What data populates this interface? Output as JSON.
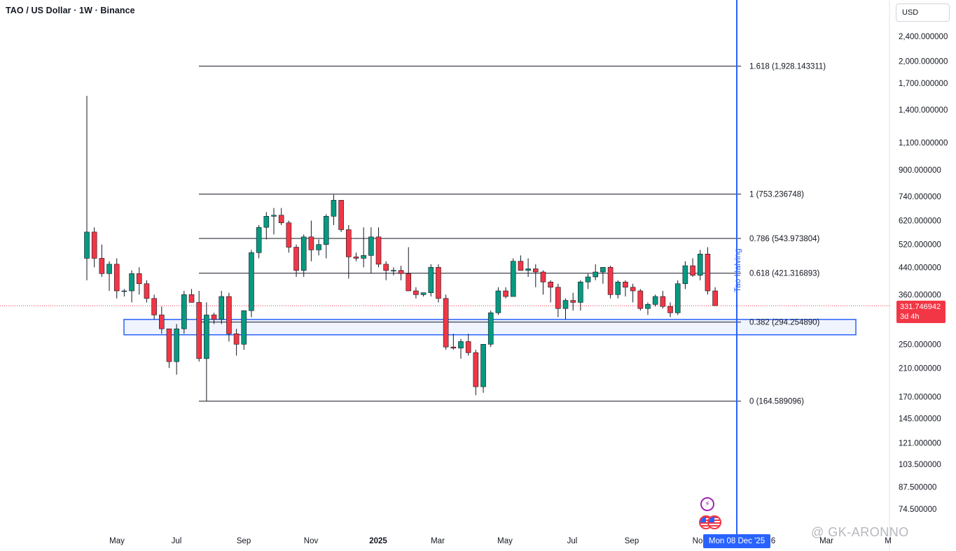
{
  "title": "TAO / US Dollar · 1W · Binance",
  "currency": "USD",
  "current_price": {
    "value": "331.746942",
    "countdown": "3d 4h",
    "color": "#f23645"
  },
  "crosshair_date": "Mon 08 Dec '25",
  "watermark": "@ GK-ARONNO",
  "halving_label": "Tao Halving",
  "icons": {
    "events": "lightning-bolt-icon",
    "economic": "us-flag-icon"
  },
  "colors": {
    "up": "#089981",
    "down": "#f23645",
    "fib_line": "#131722",
    "halving": "#2962ff",
    "zone": "#2962ff"
  },
  "price_axis": [
    "2,400.000000",
    "2,000.000000",
    "1,700.000000",
    "1,400.000000",
    "1,100.000000",
    "900.000000",
    "740.000000",
    "620.000000",
    "520.000000",
    "440.000000",
    "360.000000",
    "250.000000",
    "210.000000",
    "170.000000",
    "145.000000",
    "121.000000",
    "103.500000",
    "87.500000",
    "74.500000"
  ],
  "time_axis": [
    "May",
    "Jul",
    "Sep",
    "Nov",
    "2025",
    "Mar",
    "May",
    "Jul",
    "Sep",
    "No",
    "6",
    "Mar",
    "M"
  ],
  "chart_data": {
    "type": "candlestick",
    "title": "TAO / US Dollar · 1W · Binance",
    "yscale": "log",
    "ylim": [
      65,
      2900
    ],
    "fib_levels": [
      {
        "label": "1.618 (1,928.143311)",
        "value": 1928.143311
      },
      {
        "label": "1 (753.236748)",
        "value": 753.236748
      },
      {
        "label": "0.786 (543.973804)",
        "value": 543.973804
      },
      {
        "label": "0.618 (421.316893)",
        "value": 421.316893
      },
      {
        "label": "0.382 (294.254890)",
        "value": 294.25489
      },
      {
        "label": "0 (164.589096)",
        "value": 164.589096
      }
    ],
    "support_zone": [
      268,
      300
    ],
    "current_price": 331.746942,
    "candles": [
      [
        470,
        1550,
        400,
        570
      ],
      [
        570,
        590,
        440,
        470
      ],
      [
        470,
        520,
        410,
        420
      ],
      [
        420,
        460,
        370,
        450
      ],
      [
        450,
        470,
        350,
        370
      ],
      [
        370,
        375,
        355,
        370
      ],
      [
        370,
        430,
        340,
        420
      ],
      [
        420,
        440,
        360,
        390
      ],
      [
        390,
        400,
        340,
        350
      ],
      [
        350,
        360,
        300,
        310
      ],
      [
        310,
        330,
        270,
        280
      ],
      [
        280,
        280,
        210,
        220
      ],
      [
        220,
        290,
        200,
        280
      ],
      [
        280,
        370,
        270,
        360
      ],
      [
        360,
        375,
        340,
        340
      ],
      [
        340,
        370,
        220,
        225
      ],
      [
        225,
        340,
        165,
        310
      ],
      [
        310,
        315,
        290,
        300
      ],
      [
        300,
        370,
        290,
        355
      ],
      [
        355,
        365,
        255,
        270
      ],
      [
        270,
        280,
        230,
        250
      ],
      [
        250,
        320,
        240,
        320
      ],
      [
        320,
        500,
        305,
        490
      ],
      [
        490,
        600,
        470,
        590
      ],
      [
        590,
        660,
        540,
        640
      ],
      [
        640,
        680,
        560,
        645
      ],
      [
        645,
        680,
        600,
        610
      ],
      [
        610,
        620,
        490,
        510
      ],
      [
        510,
        520,
        410,
        430
      ],
      [
        430,
        560,
        410,
        550
      ],
      [
        550,
        620,
        460,
        500
      ],
      [
        500,
        540,
        480,
        520
      ],
      [
        520,
        650,
        470,
        640
      ],
      [
        640,
        750,
        600,
        720
      ],
      [
        720,
        720,
        570,
        580
      ],
      [
        580,
        600,
        405,
        475
      ],
      [
        475,
        490,
        460,
        470
      ],
      [
        470,
        590,
        440,
        480
      ],
      [
        480,
        590,
        420,
        550
      ],
      [
        550,
        590,
        440,
        450
      ],
      [
        450,
        460,
        400,
        430
      ],
      [
        430,
        440,
        415,
        430
      ],
      [
        430,
        445,
        400,
        420
      ],
      [
        420,
        510,
        380,
        370
      ],
      [
        370,
        380,
        350,
        360
      ],
      [
        360,
        365,
        355,
        365
      ],
      [
        365,
        450,
        355,
        440
      ],
      [
        440,
        450,
        340,
        350
      ],
      [
        350,
        360,
        240,
        245
      ],
      [
        245,
        270,
        240,
        243
      ],
      [
        243,
        260,
        225,
        255
      ],
      [
        255,
        270,
        230,
        235
      ],
      [
        235,
        240,
        172,
        183
      ],
      [
        183,
        250,
        175,
        250
      ],
      [
        250,
        320,
        245,
        315
      ],
      [
        315,
        380,
        310,
        370
      ],
      [
        370,
        380,
        350,
        355
      ],
      [
        355,
        470,
        360,
        460
      ],
      [
        460,
        480,
        430,
        430
      ],
      [
        430,
        470,
        410,
        435
      ],
      [
        435,
        450,
        380,
        425
      ],
      [
        425,
        430,
        360,
        395
      ],
      [
        395,
        400,
        340,
        380
      ],
      [
        380,
        390,
        305,
        325
      ],
      [
        325,
        350,
        300,
        345
      ],
      [
        345,
        365,
        320,
        340
      ],
      [
        340,
        400,
        320,
        395
      ],
      [
        395,
        420,
        375,
        410
      ],
      [
        410,
        450,
        400,
        425
      ],
      [
        425,
        440,
        390,
        440
      ],
      [
        440,
        445,
        350,
        360
      ],
      [
        360,
        400,
        350,
        395
      ],
      [
        395,
        400,
        355,
        380
      ],
      [
        380,
        390,
        340,
        370
      ],
      [
        370,
        375,
        320,
        325
      ],
      [
        325,
        340,
        310,
        335
      ],
      [
        335,
        360,
        330,
        355
      ],
      [
        355,
        370,
        325,
        330
      ],
      [
        330,
        340,
        305,
        315
      ],
      [
        315,
        400,
        310,
        390
      ],
      [
        390,
        460,
        375,
        445
      ],
      [
        445,
        470,
        410,
        415
      ],
      [
        415,
        500,
        400,
        485
      ],
      [
        485,
        510,
        360,
        370
      ],
      [
        370,
        380,
        332,
        332
      ]
    ]
  }
}
